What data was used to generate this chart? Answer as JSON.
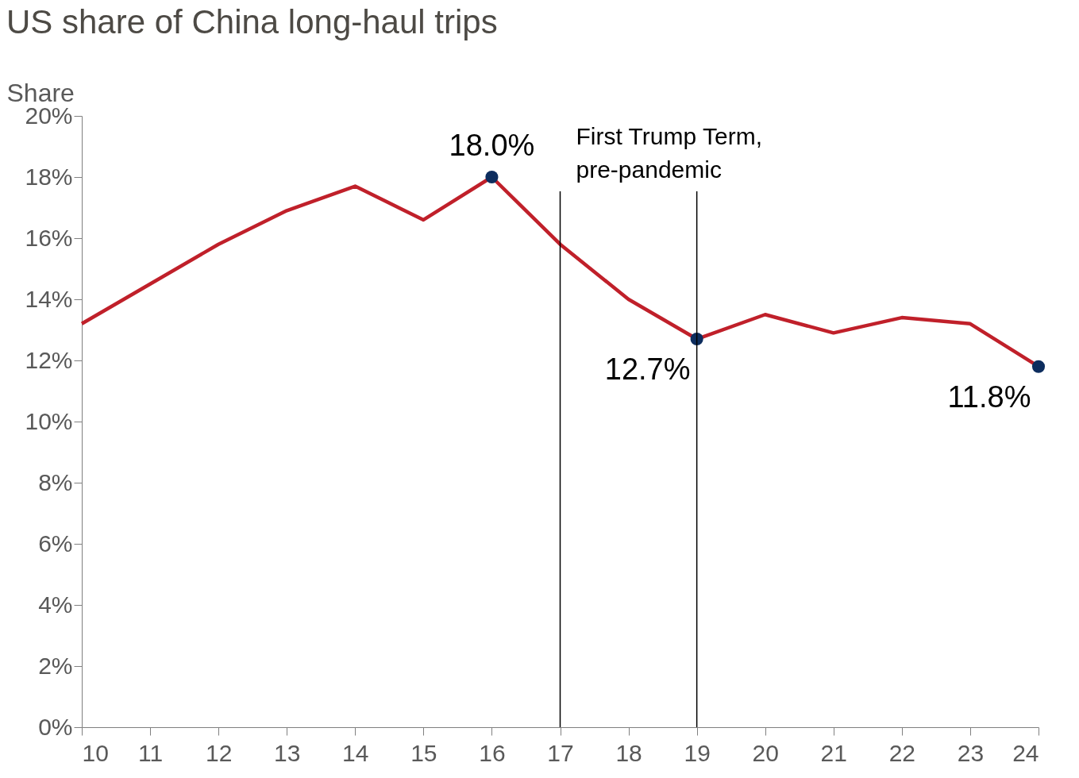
{
  "chart_data": {
    "type": "line",
    "title": "US share of China long-haul trips",
    "ylabel": "Share",
    "x": [
      10,
      11,
      12,
      13,
      14,
      15,
      16,
      17,
      18,
      19,
      20,
      21,
      22,
      23,
      24
    ],
    "series": [
      {
        "color": "#c0202a",
        "values": [
          13.2,
          14.5,
          15.8,
          16.9,
          17.7,
          16.6,
          18.0,
          15.8,
          14.0,
          12.7,
          13.5,
          12.9,
          13.4,
          13.2,
          11.8
        ],
        "value_labels": [
          null,
          null,
          null,
          null,
          null,
          null,
          "18.0%",
          null,
          null,
          "12.7%",
          null,
          null,
          null,
          null,
          "11.8%"
        ]
      }
    ],
    "xlim": [
      10,
      24
    ],
    "xticks": [
      10,
      11,
      12,
      13,
      14,
      15,
      16,
      17,
      18,
      19,
      20,
      21,
      22,
      23,
      24
    ],
    "ylim": [
      0,
      20
    ],
    "yticks": [
      {
        "value": 0,
        "label": "0%"
      },
      {
        "value": 2,
        "label": "2%"
      },
      {
        "value": 4,
        "label": "4%"
      },
      {
        "value": 6,
        "label": "6%"
      },
      {
        "value": 8,
        "label": "8%"
      },
      {
        "value": 10,
        "label": "10%"
      },
      {
        "value": 12,
        "label": "12%"
      },
      {
        "value": 14,
        "label": "14%"
      },
      {
        "value": 16,
        "label": "16%"
      },
      {
        "value": 18,
        "label": "18%"
      },
      {
        "value": 20,
        "label": "20%"
      }
    ],
    "ref_lines": [
      {
        "axis": "x",
        "value": 17,
        "label": "First Trump Term,\npre-pandemic"
      },
      {
        "axis": "x",
        "value": 19
      }
    ],
    "grid": false
  }
}
